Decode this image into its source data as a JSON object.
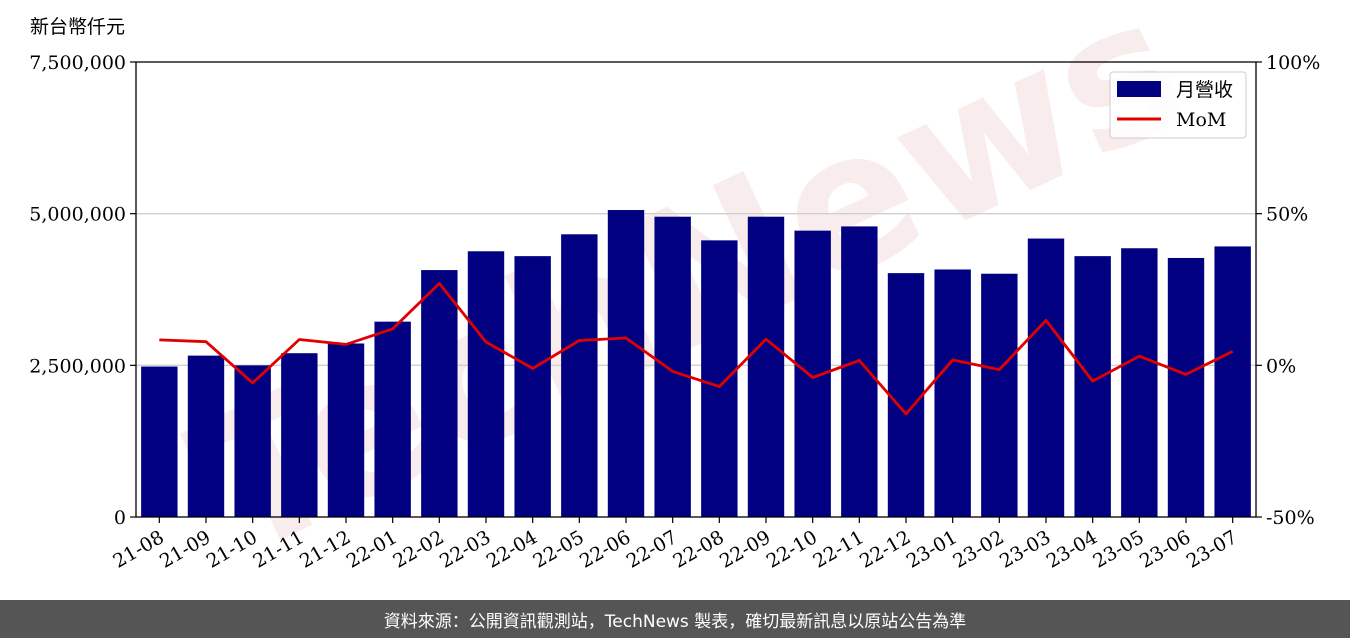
{
  "chart_data": {
    "type": "bar",
    "ylabel": "新台幣仟元",
    "ylim": [
      0,
      7500000
    ],
    "y_ticks": [
      "0",
      "2,500,000",
      "5,000,000",
      "7,500,000"
    ],
    "y2lim": [
      -50,
      100
    ],
    "y2_ticks": [
      "-50%",
      "0%",
      "50%",
      "100%"
    ],
    "grid": "horizontal",
    "legend_position": "top-right",
    "categories": [
      "21-08",
      "21-09",
      "21-10",
      "21-11",
      "21-12",
      "22-01",
      "22-02",
      "22-03",
      "22-04",
      "22-05",
      "22-06",
      "22-07",
      "22-08",
      "22-09",
      "22-10",
      "22-11",
      "22-12",
      "23-01",
      "23-02",
      "23-03",
      "23-04",
      "23-05",
      "23-06",
      "23-07"
    ],
    "series": [
      {
        "name": "月營收",
        "kind": "bar",
        "axis": "left",
        "color": "#000080",
        "values": [
          2480000,
          2660000,
          2500000,
          2700000,
          2860000,
          3220000,
          4070000,
          4380000,
          4300000,
          4660000,
          5060000,
          4950000,
          4560000,
          4950000,
          4720000,
          4790000,
          4020000,
          4080000,
          4010000,
          4590000,
          4300000,
          4430000,
          4270000,
          4460000
        ]
      },
      {
        "name": "MoM",
        "kind": "line",
        "axis": "right",
        "color": "#e00000",
        "values": [
          8.4,
          7.8,
          -5.8,
          8.5,
          6.9,
          12.0,
          27.0,
          7.7,
          -1.0,
          8.2,
          9.0,
          -2.0,
          -7.0,
          8.6,
          -4.0,
          1.6,
          -16.0,
          1.8,
          -1.4,
          14.8,
          -5.2,
          3.0,
          -3.0,
          4.6
        ]
      }
    ]
  },
  "watermark": "TechNews",
  "footer": {
    "text": "資料來源：公開資訊觀測站，TechNews 製表，確切最新訊息以原站公告為準"
  }
}
